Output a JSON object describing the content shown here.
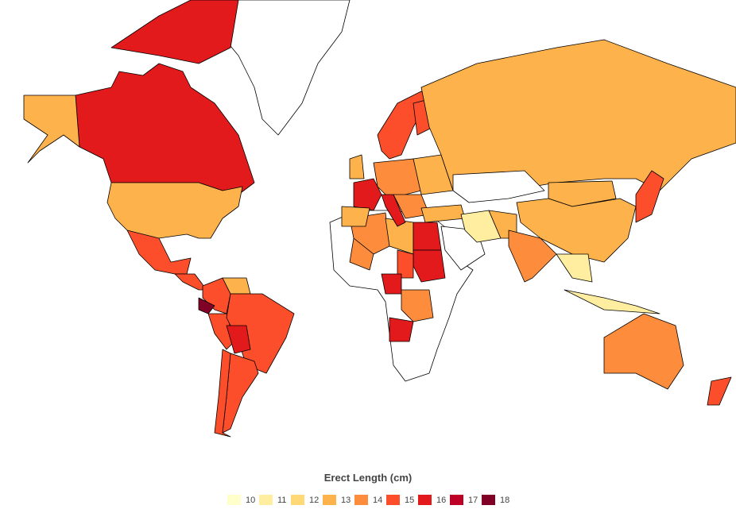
{
  "legend": {
    "title": "Erect Length (cm)",
    "bins": [
      {
        "label": "10",
        "color": "#ffffcc"
      },
      {
        "label": "11",
        "color": "#ffeda0"
      },
      {
        "label": "12",
        "color": "#fed976"
      },
      {
        "label": "13",
        "color": "#feb24c"
      },
      {
        "label": "14",
        "color": "#fd8d3c"
      },
      {
        "label": "15",
        "color": "#fc4e2a"
      },
      {
        "label": "16",
        "color": "#e31a1c"
      },
      {
        "label": "17",
        "color": "#bd0026"
      },
      {
        "label": "18",
        "color": "#800026"
      }
    ]
  },
  "no_data_color": "#ffffff",
  "regions": {
    "greenland": null,
    "canada": 16,
    "canada-islands": 16,
    "alaska": 13,
    "usa": 13,
    "mexico": 15,
    "central-america": 15,
    "colombia": 15,
    "venezuela": 13,
    "ecuador": 18,
    "peru": 15,
    "brazil": 15,
    "bolivia": 16,
    "argentina": 15,
    "chile": 15,
    "africa": null,
    "algeria": 14,
    "libya": 13,
    "egypt": 16,
    "sudan": 16,
    "chad": 15,
    "cameroon": 16,
    "drc": 14,
    "angola": 16,
    "mali": 14,
    "scandinavia": 15,
    "finland": 15,
    "uk": 13,
    "france": 16,
    "spain": 13,
    "central-europe": 14,
    "italy": 16,
    "eastern-europe": 13,
    "balkans": 14,
    "turkey": 13,
    "saudi-arabia": null,
    "iran": 11,
    "afghanistan-pakistan": 13,
    "india": 14,
    "russia": 13,
    "kazakhstan": null,
    "mongolia": 13,
    "china": 13,
    "southeast-asia": 11,
    "japan": 15,
    "indonesia": 11,
    "australia": 14,
    "new-zealand": 15
  }
}
